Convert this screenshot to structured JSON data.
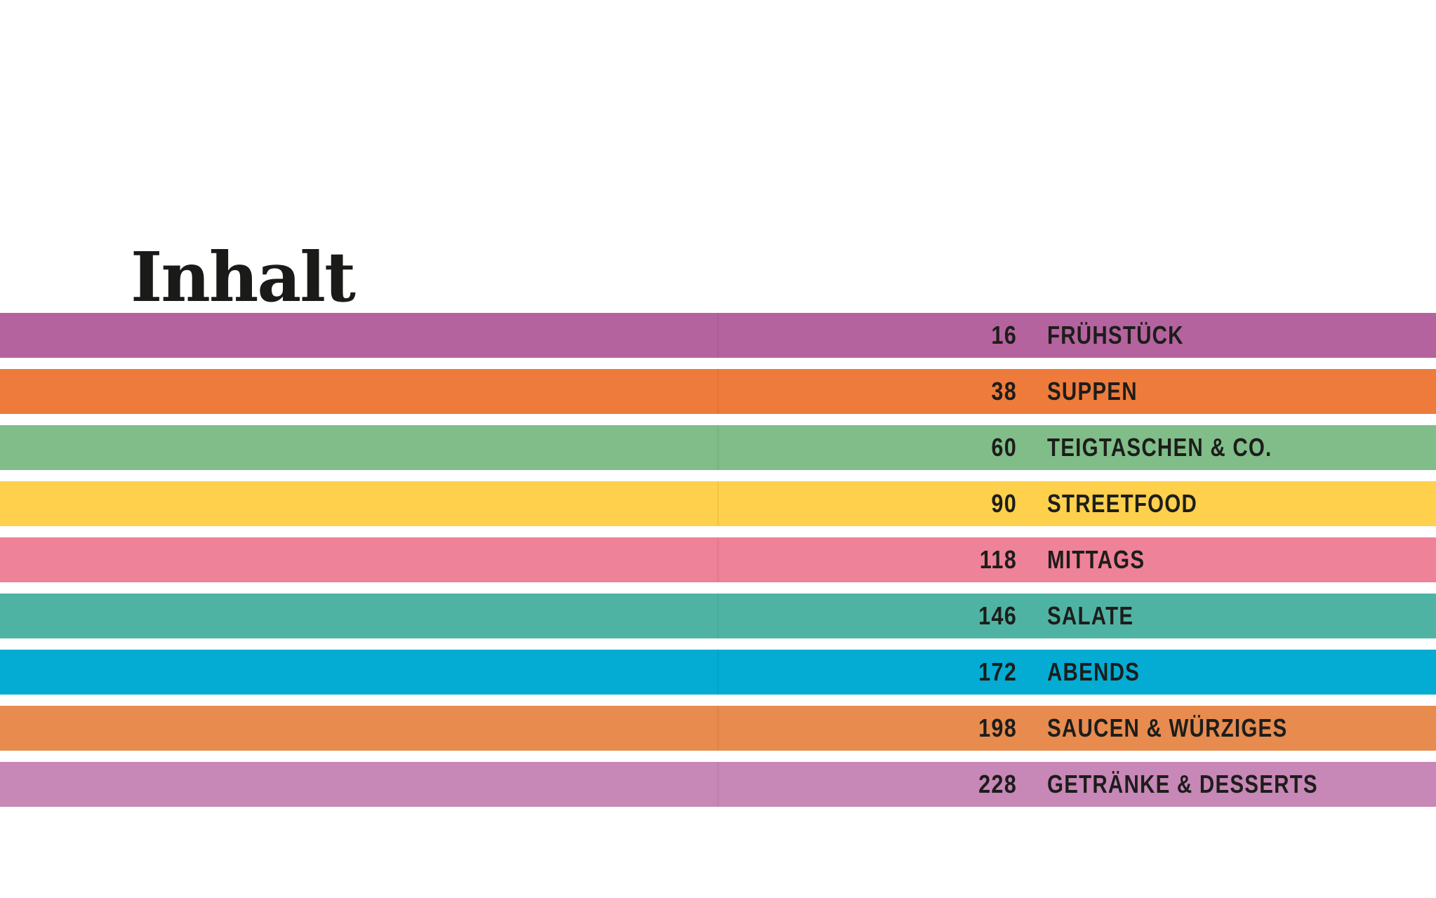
{
  "page": {
    "title": "Inhalt",
    "background_color": "#ffffff",
    "text_color": "#1d1d1b"
  },
  "toc": {
    "entries": [
      {
        "page_number": "16",
        "label": "FRÜHSTÜCK",
        "color": "#b4639e"
      },
      {
        "page_number": "38",
        "label": "SUPPEN",
        "color": "#ee7b3b"
      },
      {
        "page_number": "60",
        "label": "TEIGTASCHEN & CO.",
        "color": "#80bd89"
      },
      {
        "page_number": "90",
        "label": "STREETFOOD",
        "color": "#fed04c"
      },
      {
        "page_number": "118",
        "label": "MITTAGS",
        "color": "#ee8298"
      },
      {
        "page_number": "146",
        "label": "SALATE",
        "color": "#4fb3a4"
      },
      {
        "page_number": "172",
        "label": "ABENDS",
        "color": "#04abd3"
      },
      {
        "page_number": "198",
        "label": "SAUCEN & WÜRZIGES",
        "color": "#e78b4f"
      },
      {
        "page_number": "228",
        "label": "GETRÄNKE & DESSERTS",
        "color": "#c787b7"
      }
    ]
  }
}
